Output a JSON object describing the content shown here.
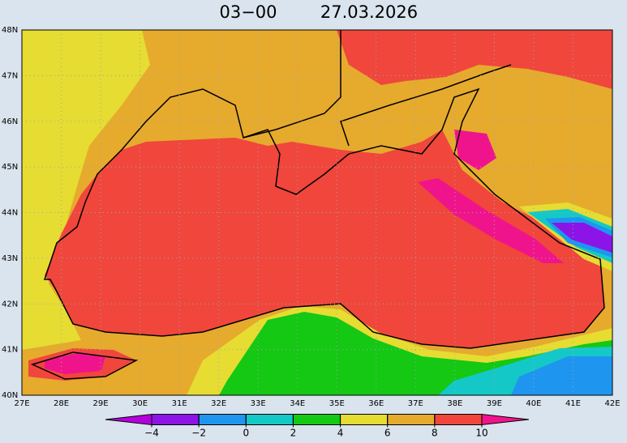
{
  "header": {
    "time": "03−00",
    "date": "27.03.2026"
  },
  "map": {
    "lon_labels": [
      "27E",
      "28E",
      "29E",
      "30E",
      "31E",
      "32E",
      "33E",
      "34E",
      "35E",
      "36E",
      "37E",
      "38E",
      "39E",
      "40E",
      "41E",
      "42E"
    ],
    "lat_labels": [
      "48N",
      "47N",
      "46N",
      "45N",
      "44N",
      "43N",
      "42N",
      "41N",
      "40N"
    ]
  },
  "colorbar": {
    "ticks": [
      {
        "value": -4,
        "label": "−4"
      },
      {
        "value": -2,
        "label": "−2"
      },
      0,
      2,
      4,
      6,
      8,
      10
    ],
    "colors": [
      "#b400dc",
      "#8c14e6",
      "#1e96f0",
      "#14c8c8",
      "#14c814",
      "#e6dc32",
      "#e6aa2d",
      "#f0463c",
      "#f0148c"
    ]
  }
}
